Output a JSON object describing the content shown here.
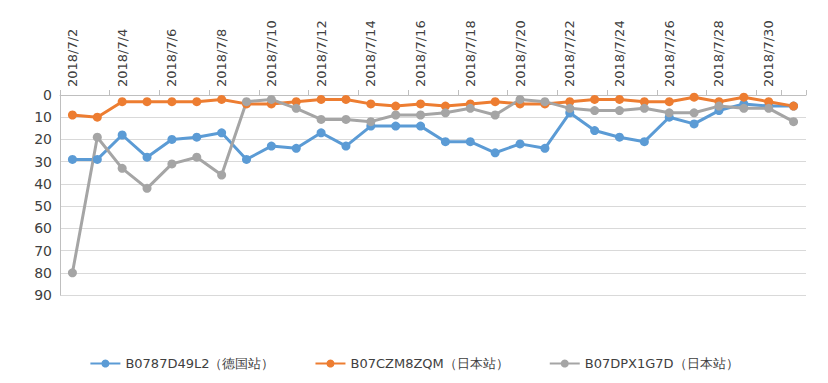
{
  "chart_data": {
    "type": "line",
    "categories": [
      "2018/7/2",
      null,
      "2018/7/4",
      null,
      "2018/7/6",
      null,
      "2018/7/8",
      null,
      "2018/7/10",
      null,
      "2018/7/12",
      null,
      "2018/7/14",
      null,
      "2018/7/16",
      null,
      "2018/7/18",
      null,
      "2018/7/20",
      null,
      "2018/7/22",
      null,
      "2018/7/24",
      null,
      "2018/7/26",
      null,
      "2018/7/28",
      null,
      "2018/7/30",
      null
    ],
    "series": [
      {
        "name": "B0787D49L2（德国站）",
        "color": "#5b9bd5",
        "marker": "circle",
        "values": [
          29,
          29,
          18,
          28,
          20,
          19,
          17,
          29,
          23,
          24,
          17,
          23,
          14,
          14,
          14,
          21,
          21,
          26,
          22,
          24,
          8,
          16,
          19,
          21,
          10,
          13,
          7,
          4,
          5,
          5
        ]
      },
      {
        "name": "B07CZM8ZQM（日本站）",
        "color": "#ed7d31",
        "marker": "circle",
        "values": [
          9,
          10,
          3,
          3,
          3,
          3,
          2,
          4,
          4,
          3,
          2,
          2,
          4,
          5,
          4,
          5,
          4,
          3,
          4,
          4,
          3,
          2,
          2,
          3,
          3,
          1,
          3,
          1,
          3,
          5
        ]
      },
      {
        "name": "B07DPX1G7D（日本站）",
        "color": "#a5a5a5",
        "marker": "circle",
        "values": [
          80,
          19,
          33,
          42,
          31,
          28,
          36,
          3,
          2,
          6,
          11,
          11,
          12,
          9,
          9,
          8,
          6,
          9,
          2,
          3,
          6,
          7,
          7,
          6,
          8,
          8,
          5,
          6,
          6,
          12
        ]
      }
    ],
    "ylim": [
      0,
      90
    ],
    "yticks": [
      0,
      10,
      20,
      30,
      40,
      50,
      60,
      70,
      80,
      90
    ],
    "grid": true,
    "legend": "bottom"
  }
}
